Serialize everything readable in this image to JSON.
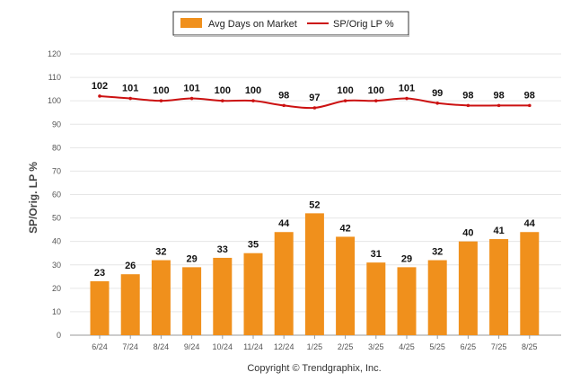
{
  "chart_data": {
    "type": "bar",
    "categories": [
      "6/24",
      "7/24",
      "8/24",
      "9/24",
      "10/24",
      "11/24",
      "12/24",
      "1/25",
      "2/25",
      "3/25",
      "4/25",
      "5/25",
      "6/25",
      "7/25",
      "8/25"
    ],
    "series": [
      {
        "name": "Avg Days on Market",
        "type": "bar",
        "color": "#F0901C",
        "values": [
          23,
          26,
          32,
          29,
          33,
          35,
          44,
          52,
          42,
          31,
          29,
          32,
          40,
          41,
          44
        ]
      },
      {
        "name": "SP/Orig LP %",
        "type": "line",
        "color": "#CC1111",
        "values": [
          102,
          101,
          100,
          101,
          100,
          100,
          98,
          97,
          100,
          100,
          101,
          99,
          98,
          98,
          98
        ]
      }
    ],
    "ylabel": "SP/Orig. LP %",
    "ylim": [
      0,
      120
    ],
    "yticks": [
      "0",
      "10",
      "20",
      "30",
      "40",
      "50",
      "60",
      "70",
      "80",
      "90",
      "100",
      "110",
      "120"
    ],
    "grid": true,
    "legend_position": "top-center"
  },
  "legend": {
    "bar_label": "Avg Days on Market",
    "line_label": "SP/Orig LP %"
  },
  "footer": {
    "copyright": "Copyright © Trendgraphix, Inc."
  }
}
